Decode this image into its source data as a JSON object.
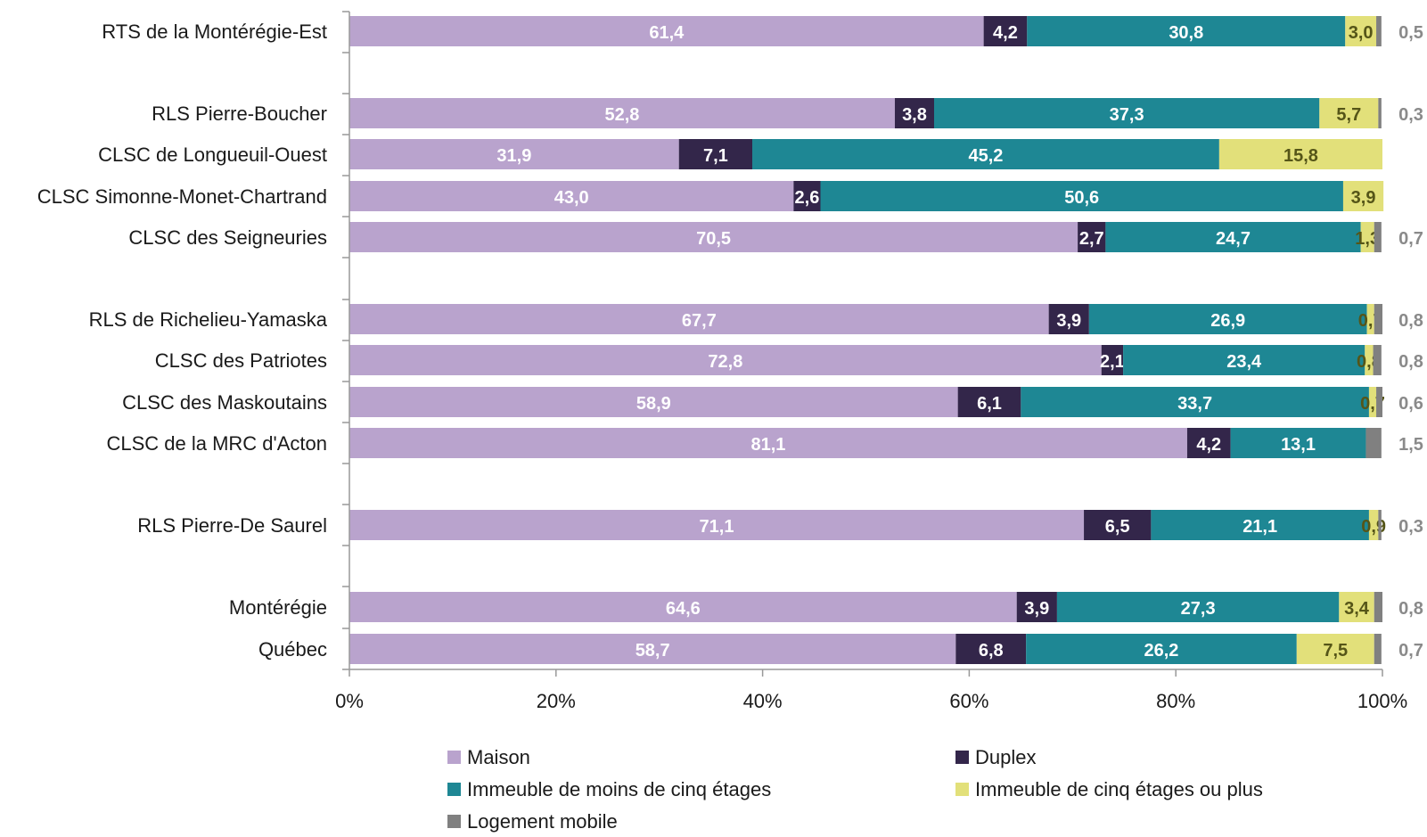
{
  "chart_data": {
    "type": "bar",
    "orientation": "horizontal",
    "stacked": "percent",
    "categories": [
      "RTS de la Montérégie-Est",
      "RLS Pierre-Boucher",
      "CLSC de Longueuil-Ouest",
      "CLSC Simonne-Monet-Chartrand",
      "CLSC des Seigneuries",
      "RLS de Richelieu-Yamaska",
      "CLSC des Patriotes",
      "CLSC des Maskoutains",
      "CLSC de la MRC d'Acton",
      "RLS Pierre-De Saurel",
      "Montérégie",
      "Québec"
    ],
    "series": [
      {
        "name": "Maison",
        "color": "#b9a3cd",
        "label_color": "#ffffff",
        "values": [
          61.4,
          52.8,
          31.9,
          43.0,
          70.5,
          67.7,
          72.8,
          58.9,
          81.1,
          71.1,
          64.6,
          58.7
        ],
        "labels": [
          "61,4",
          "52,8",
          "31,9",
          "43,0",
          "70,5",
          "67,7",
          "72,8",
          "58,9",
          "81,1",
          "71,1",
          "64,6",
          "58,7"
        ]
      },
      {
        "name": "Duplex",
        "color": "#33264a",
        "label_color": "#ffffff",
        "values": [
          4.2,
          3.8,
          7.1,
          2.6,
          2.7,
          3.9,
          2.1,
          6.1,
          4.2,
          6.5,
          3.9,
          6.8
        ],
        "labels": [
          "4,2",
          "3,8",
          "7,1",
          "2,6",
          "2,7",
          "3,9",
          "2,1",
          "6,1",
          "4,2",
          "6,5",
          "3,9",
          "6,8"
        ]
      },
      {
        "name": "Immeuble de moins de cinq étages",
        "color": "#1e8794",
        "label_color": "#ffffff",
        "values": [
          30.8,
          37.3,
          45.2,
          50.6,
          24.7,
          26.9,
          23.4,
          33.7,
          13.1,
          21.1,
          27.3,
          26.2
        ],
        "labels": [
          "30,8",
          "37,3",
          "45,2",
          "50,6",
          "24,7",
          "26,9",
          "23,4",
          "33,7",
          "13,1",
          "21,1",
          "27,3",
          "26,2"
        ]
      },
      {
        "name": "Immeuble de cinq étages ou plus",
        "color": "#e2e07a",
        "label_color": "#555518",
        "values": [
          3.0,
          5.7,
          15.8,
          3.9,
          1.3,
          0.7,
          0.8,
          0.7,
          0.0,
          0.9,
          3.4,
          7.5
        ],
        "labels": [
          "3,0",
          "5,7",
          "15,8",
          "3,9",
          "1,3",
          "0,7",
          "0,8",
          "0,7",
          "",
          "0,9",
          "3,4",
          "7,5"
        ]
      },
      {
        "name": "Logement mobile",
        "color": "#808080",
        "label_color": "#8a8a8a",
        "values": [
          0.5,
          0.3,
          0.0,
          0.0,
          0.7,
          0.8,
          0.8,
          0.6,
          1.5,
          0.3,
          0.8,
          0.7
        ],
        "labels": [
          "0,5",
          "0,3",
          "",
          "",
          "0,7",
          "0,8",
          "0,8",
          "0,6",
          "1,5",
          "0,3",
          "0,8",
          "0,7"
        ],
        "labels_outside": true
      }
    ],
    "xlim": [
      0,
      100
    ],
    "xticks": [
      "0%",
      "20%",
      "40%",
      "60%",
      "80%",
      "100%"
    ],
    "legend_position": "bottom",
    "grid": false
  }
}
